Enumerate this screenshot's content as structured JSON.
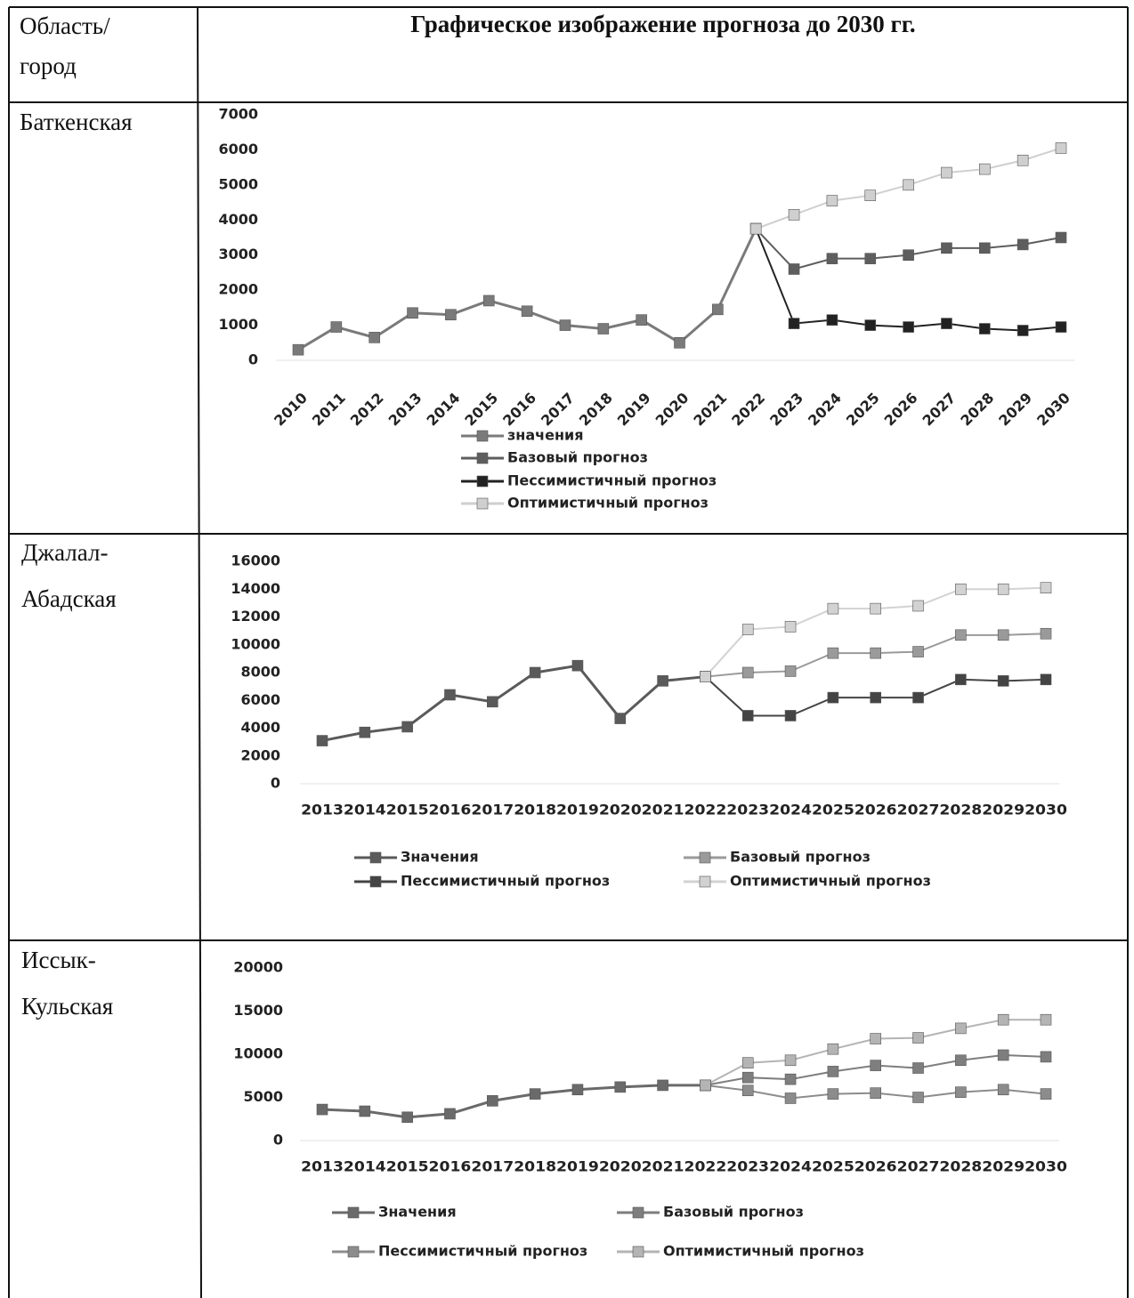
{
  "table": {
    "header": [
      "Область/ город",
      "Графическое изображение прогноза до 2030 гг."
    ],
    "rows": [
      "Баткенская",
      "Джалал-Абадская",
      "Иссык-Кульская"
    ]
  },
  "chart_data": [
    {
      "type": "line",
      "categories": [
        "2010",
        "2011",
        "2012",
        "2013",
        "2014",
        "2015",
        "2016",
        "2017",
        "2018",
        "2019",
        "2020",
        "2021",
        "2022",
        "2023",
        "2024",
        "2025",
        "2026",
        "2027",
        "2028",
        "2029",
        "2030"
      ],
      "ylim": [
        0,
        7000
      ],
      "yticks": [
        0,
        1000,
        2000,
        3000,
        4000,
        5000,
        6000,
        7000
      ],
      "series": [
        {
          "name": "значения",
          "color": "#7a7a7a",
          "values": [
            300,
            950,
            650,
            1350,
            1300,
            1700,
            1400,
            1000,
            900,
            1150,
            500,
            1450,
            3750,
            null,
            null,
            null,
            null,
            null,
            null,
            null,
            null
          ]
        },
        {
          "name": "Базовый прогноз",
          "color": "#5e5e5e",
          "values": [
            null,
            null,
            null,
            null,
            null,
            null,
            null,
            null,
            null,
            null,
            null,
            null,
            3750,
            2600,
            2900,
            2900,
            3000,
            3200,
            3200,
            3300,
            3500
          ]
        },
        {
          "name": "Пессимистичный прогноз",
          "color": "#222222",
          "values": [
            null,
            null,
            null,
            null,
            null,
            null,
            null,
            null,
            null,
            null,
            null,
            null,
            3750,
            1050,
            1150,
            1000,
            950,
            1050,
            900,
            850,
            950
          ]
        },
        {
          "name": "Оптимистичный прогноз",
          "color": "#cfcfcf",
          "values": [
            null,
            null,
            null,
            null,
            null,
            null,
            null,
            null,
            null,
            null,
            null,
            null,
            3750,
            4150,
            4550,
            4700,
            5000,
            5350,
            5450,
            5700,
            6050
          ]
        }
      ]
    },
    {
      "type": "line",
      "categories": [
        "2013",
        "2014",
        "2015",
        "2016",
        "2017",
        "2018",
        "2019",
        "2020",
        "2021",
        "2022",
        "2023",
        "2024",
        "2025",
        "2026",
        "2027",
        "2028",
        "2029",
        "2030"
      ],
      "ylim": [
        0,
        16000
      ],
      "yticks": [
        0,
        2000,
        4000,
        6000,
        8000,
        10000,
        12000,
        14000,
        16000
      ],
      "series": [
        {
          "name": "Значения",
          "color": "#5a5a5a",
          "values": [
            3100,
            3700,
            4100,
            6400,
            5900,
            8000,
            8500,
            4700,
            7400,
            7700,
            null,
            null,
            null,
            null,
            null,
            null,
            null,
            null
          ]
        },
        {
          "name": "Базовый прогноз",
          "color": "#9a9a9a",
          "values": [
            null,
            null,
            null,
            null,
            null,
            null,
            null,
            null,
            null,
            7700,
            8000,
            8100,
            9400,
            9400,
            9500,
            10700,
            10700,
            10800
          ]
        },
        {
          "name": "Пессимистичный прогноз",
          "color": "#444444",
          "values": [
            null,
            null,
            null,
            null,
            null,
            null,
            null,
            null,
            null,
            7700,
            4900,
            4900,
            6200,
            6200,
            6200,
            7500,
            7400,
            7500
          ]
        },
        {
          "name": "Оптимистичный прогноз",
          "color": "#d2d2d2",
          "values": [
            null,
            null,
            null,
            null,
            null,
            null,
            null,
            null,
            null,
            7700,
            11100,
            11300,
            12600,
            12600,
            12800,
            14000,
            14000,
            14100
          ]
        }
      ]
    },
    {
      "type": "line",
      "categories": [
        "2013",
        "2014",
        "2015",
        "2016",
        "2017",
        "2018",
        "2019",
        "2020",
        "2021",
        "2022",
        "2023",
        "2024",
        "2025",
        "2026",
        "2027",
        "2028",
        "2029",
        "2030"
      ],
      "ylim": [
        0,
        20000
      ],
      "yticks": [
        0,
        5000,
        10000,
        15000,
        20000
      ],
      "series": [
        {
          "name": "Значения",
          "color": "#6a6a6a",
          "values": [
            3600,
            3400,
            2700,
            3100,
            4600,
            5400,
            5900,
            6200,
            6400,
            6400,
            null,
            null,
            null,
            null,
            null,
            null,
            null,
            null
          ]
        },
        {
          "name": "Базовый прогноз",
          "color": "#7e7e7e",
          "values": [
            null,
            null,
            null,
            null,
            null,
            null,
            null,
            null,
            null,
            6400,
            7300,
            7100,
            8000,
            8700,
            8400,
            9300,
            9900,
            9700
          ]
        },
        {
          "name": "Пессимистичный прогноз",
          "color": "#8c8c8c",
          "values": [
            null,
            null,
            null,
            null,
            null,
            null,
            null,
            null,
            null,
            6400,
            5800,
            4900,
            5400,
            5500,
            5000,
            5600,
            5900,
            5400
          ]
        },
        {
          "name": "Оптимистичный прогноз",
          "color": "#b4b4b4",
          "values": [
            null,
            null,
            null,
            null,
            null,
            null,
            null,
            null,
            null,
            6400,
            9000,
            9300,
            10600,
            11800,
            11900,
            13000,
            14000,
            14000
          ]
        }
      ]
    }
  ]
}
